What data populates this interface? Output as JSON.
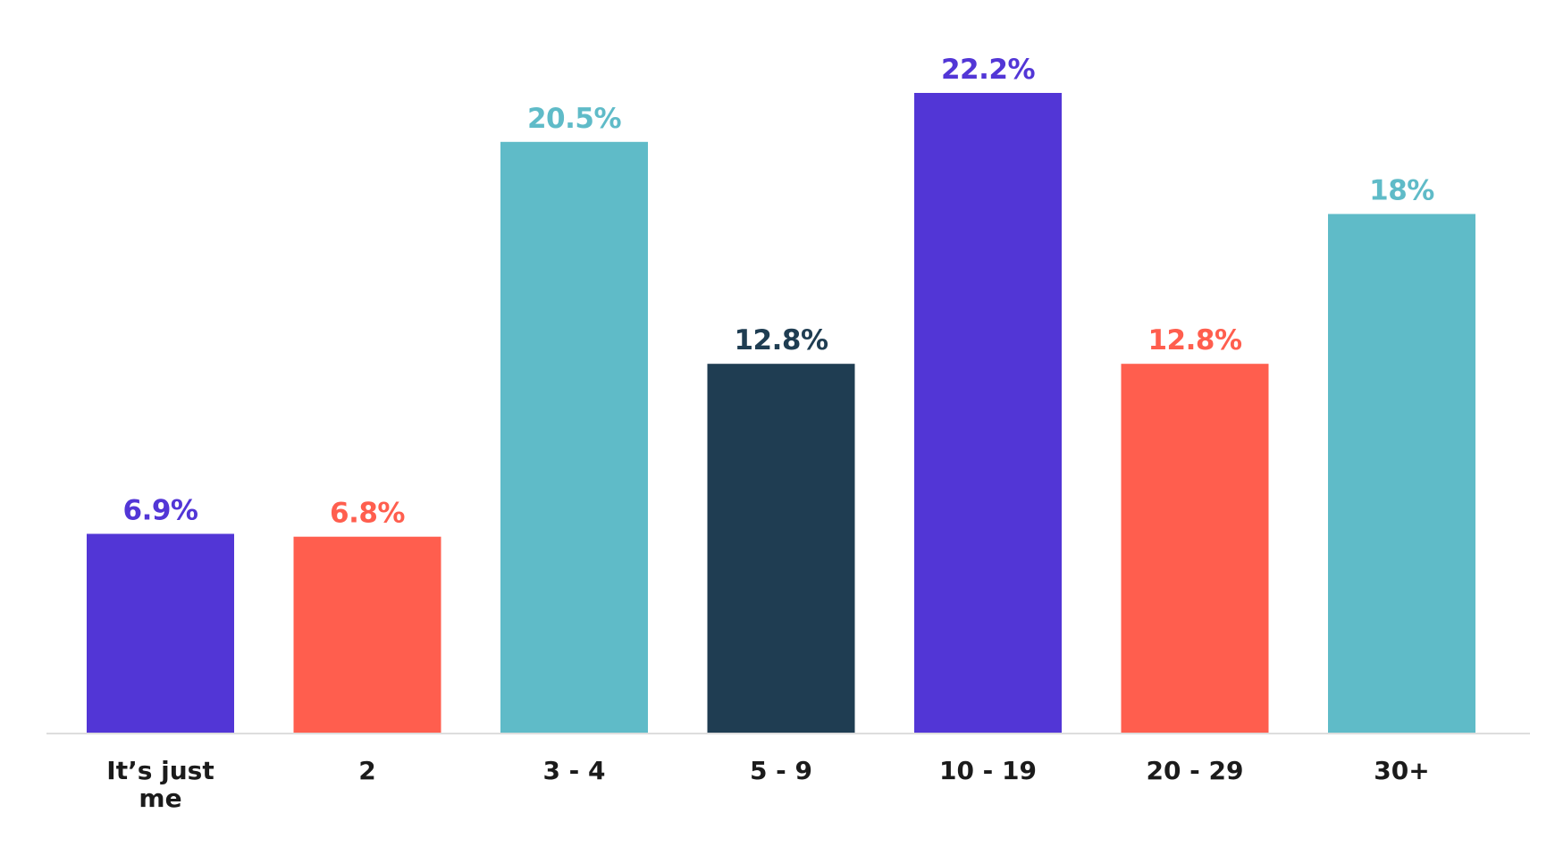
{
  "chart_data": {
    "type": "bar",
    "title": "",
    "xlabel": "",
    "ylabel": "",
    "ylim": [
      0,
      22.2
    ],
    "grid": false,
    "legend": "none",
    "categories": [
      [
        "It’s just",
        "me"
      ],
      [
        "2"
      ],
      [
        "3 - 4"
      ],
      [
        "5 - 9"
      ],
      [
        "10 - 19"
      ],
      [
        "20 - 29"
      ],
      [
        "30+"
      ]
    ],
    "values": [
      6.9,
      6.8,
      20.5,
      12.8,
      22.2,
      12.8,
      18
    ],
    "data_labels": [
      "6.9%",
      "6.8%",
      "20.5%",
      "12.8%",
      "22.2%",
      "12.8%",
      "18%"
    ],
    "colors": [
      "#5236d6",
      "#ff5e4e",
      "#5fbbc8",
      "#1f3d52",
      "#5236d6",
      "#ff5e4e",
      "#5fbbc8"
    ],
    "axis_color": "#dddddd"
  }
}
